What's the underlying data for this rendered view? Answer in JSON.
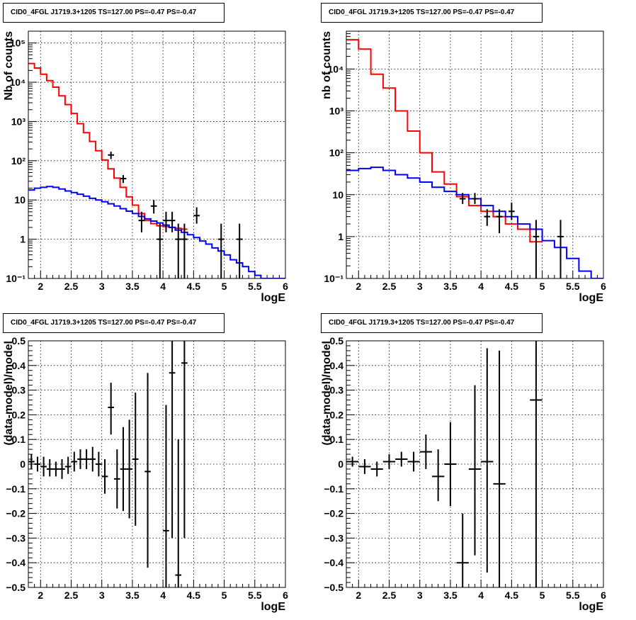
{
  "chart_data": [
    {
      "type": "line",
      "title": "CID0_4FGL J1719.3+1205 TS=127.00 PS=-0.47 PS=-0.47",
      "xlabel": "logE",
      "ylabel": "Nb of counts",
      "log_y": true,
      "grid": true,
      "xlim": [
        1.8,
        6
      ],
      "ylim": [
        0.1,
        200000
      ],
      "xticks": [
        2,
        2.5,
        3,
        3.5,
        4,
        4.5,
        5,
        5.5,
        6
      ],
      "xtick_labels": [
        "2",
        "2.5",
        "3",
        "3.5",
        "4",
        "4.5",
        "5",
        "5.5",
        "6"
      ],
      "yticks": [
        0.1,
        1,
        10,
        100,
        1000,
        10000,
        100000
      ],
      "ytick_labels": [
        "10⁻¹",
        "1",
        "10",
        "10²",
        "10³",
        "10⁴",
        "10⁵"
      ],
      "series": [
        {
          "kind": "step",
          "color": "#ff0000",
          "edges": [
            1.8,
            1.9,
            2.0,
            2.1,
            2.2,
            2.3,
            2.4,
            2.5,
            2.6,
            2.7,
            2.8,
            2.9,
            3.0,
            3.1,
            3.2,
            3.3,
            3.4,
            3.5,
            3.6,
            3.7,
            3.8,
            3.9,
            4.0,
            4.1,
            4.2,
            4.3,
            4.4
          ],
          "values": [
            30000,
            23000,
            16000,
            11000,
            7500,
            4500,
            2700,
            1600,
            880,
            520,
            310,
            180,
            105,
            62,
            36,
            21,
            12,
            7.4,
            4.5,
            3.0,
            2.5,
            2.2,
            2.1,
            2.0,
            1.9,
            1.8
          ]
        },
        {
          "kind": "step",
          "color": "#0000ff",
          "edges": [
            1.8,
            1.9,
            2.0,
            2.1,
            2.2,
            2.3,
            2.4,
            2.5,
            2.6,
            2.7,
            2.8,
            2.9,
            3.0,
            3.1,
            3.2,
            3.3,
            3.4,
            3.5,
            3.6,
            3.7,
            3.8,
            3.9,
            4.0,
            4.1,
            4.2,
            4.3,
            4.4,
            4.5,
            4.6,
            4.7,
            4.8,
            4.9,
            5.0,
            5.1,
            5.2,
            5.3,
            5.4,
            5.5,
            5.6,
            5.7,
            5.8,
            5.9,
            6.0
          ],
          "values": [
            18,
            20,
            21,
            22,
            21,
            19,
            17,
            15.5,
            14,
            12.5,
            11,
            10,
            9,
            8,
            7,
            6,
            5.2,
            4.5,
            3.8,
            3.3,
            2.9,
            2.6,
            2.3,
            2.0,
            1.7,
            1.5,
            1.3,
            1.1,
            0.9,
            0.75,
            0.6,
            0.5,
            0.4,
            0.3,
            0.25,
            0.2,
            0.15,
            0.12,
            0.1,
            0.1,
            0.1,
            0.1
          ]
        },
        {
          "kind": "points",
          "color": "#000000",
          "points": [
            {
              "x": 3.15,
              "y": 140,
              "ylo": 110,
              "yhi": 170
            },
            {
              "x": 3.35,
              "y": 35,
              "ylo": 27,
              "yhi": 43
            },
            {
              "x": 3.65,
              "y": 3.0,
              "ylo": 1.5,
              "yhi": 5.0
            },
            {
              "x": 3.85,
              "y": 7.0,
              "ylo": 4.5,
              "yhi": 10
            },
            {
              "x": 3.95,
              "y": 1.0,
              "ylo": 0.1,
              "yhi": 2.5
            },
            {
              "x": 4.05,
              "y": 3.0,
              "ylo": 1.5,
              "yhi": 5.0
            },
            {
              "x": 4.15,
              "y": 3.0,
              "ylo": 1.5,
              "yhi": 5.0
            },
            {
              "x": 4.25,
              "y": 1.0,
              "ylo": 0.1,
              "yhi": 2.5
            },
            {
              "x": 4.35,
              "y": 1.0,
              "ylo": 0.1,
              "yhi": 2.5
            },
            {
              "x": 4.55,
              "y": 4.0,
              "ylo": 2.5,
              "yhi": 6.5
            },
            {
              "x": 4.95,
              "y": 1.0,
              "ylo": 0.1,
              "yhi": 2.5
            },
            {
              "x": 5.25,
              "y": 1.0,
              "ylo": 0.1,
              "yhi": 2.5
            }
          ]
        }
      ]
    },
    {
      "type": "line",
      "title": "CID0_4FGL J1719.3+1205 TS=127.00 PS=-0.47 PS=-0.47",
      "xlabel": "logE",
      "ylabel": "nb of counts",
      "log_y": true,
      "grid": true,
      "xlim": [
        1.8,
        6
      ],
      "ylim": [
        0.1,
        80000
      ],
      "xticks": [
        2,
        2.5,
        3,
        3.5,
        4,
        4.5,
        5,
        5.5,
        6
      ],
      "xtick_labels": [
        "2",
        "2.5",
        "3",
        "3.5",
        "4",
        "4.5",
        "5",
        "5.5",
        "6"
      ],
      "yticks": [
        0.1,
        1,
        10,
        100,
        1000,
        10000
      ],
      "ytick_labels": [
        "10⁻¹",
        "1",
        "10",
        "10²",
        "10³",
        "10⁴"
      ],
      "series": [
        {
          "kind": "step",
          "color": "#ff0000",
          "edges": [
            1.8,
            2.0,
            2.2,
            2.4,
            2.6,
            2.8,
            3.0,
            3.2,
            3.4,
            3.6,
            3.8,
            4.0,
            4.2,
            4.4,
            4.6,
            4.8,
            5.0
          ],
          "values": [
            50000,
            30000,
            7500,
            3500,
            1000,
            330,
            100,
            35,
            18,
            9,
            5.5,
            4.0,
            3.0,
            2.0,
            1.5,
            0.75
          ]
        },
        {
          "kind": "step",
          "color": "#0000ff",
          "edges": [
            1.8,
            2.0,
            2.2,
            2.4,
            2.6,
            2.8,
            3.0,
            3.2,
            3.4,
            3.6,
            3.8,
            4.0,
            4.2,
            4.4,
            4.6,
            4.8,
            5.0,
            5.2,
            5.4,
            5.6,
            5.8,
            6.0
          ],
          "values": [
            38,
            42,
            45,
            38,
            30,
            25,
            20,
            15,
            12,
            10,
            8,
            5.5,
            4.0,
            3.0,
            2.0,
            1.5,
            0.8,
            0.55,
            0.3,
            0.15,
            0.1
          ]
        },
        {
          "kind": "points",
          "color": "#000000",
          "points": [
            {
              "x": 3.7,
              "y": 8.0,
              "ylo": 6.0,
              "yhi": 11
            },
            {
              "x": 3.9,
              "y": 8.0,
              "ylo": 6.0,
              "yhi": 11
            },
            {
              "x": 4.1,
              "y": 3.0,
              "ylo": 1.8,
              "yhi": 4.5
            },
            {
              "x": 4.3,
              "y": 3.0,
              "ylo": 1.2,
              "yhi": 4.5
            },
            {
              "x": 4.5,
              "y": 4.0,
              "ylo": 2.5,
              "yhi": 6.5
            },
            {
              "x": 4.9,
              "y": 1.0,
              "ylo": 0.1,
              "yhi": 2.5
            },
            {
              "x": 5.3,
              "y": 1.0,
              "ylo": 0.1,
              "yhi": 2.5
            }
          ]
        }
      ]
    },
    {
      "type": "scatter",
      "title": "CID0_4FGL J1719.3+1205 TS=127.00 PS=-0.47 PS=-0.47",
      "xlabel": "logE",
      "ylabel": "(data-model)/model",
      "grid": true,
      "xlim": [
        1.8,
        6
      ],
      "ylim": [
        -0.5,
        0.5
      ],
      "xticks": [
        2,
        2.5,
        3,
        3.5,
        4,
        4.5,
        5,
        5.5,
        6
      ],
      "xtick_labels": [
        "2",
        "2.5",
        "3",
        "3.5",
        "4",
        "4.5",
        "5",
        "5.5",
        "6"
      ],
      "yticks": [
        -0.5,
        -0.4,
        -0.3,
        -0.2,
        -0.1,
        0,
        0.1,
        0.2,
        0.3,
        0.4,
        0.5
      ],
      "ytick_labels": [
        "−0.5",
        "−0.4",
        "−0.3",
        "−0.2",
        "−0.1",
        "0",
        "0.1",
        "0.2",
        "0.3",
        "0.4",
        "0.5"
      ],
      "series": [
        {
          "kind": "points",
          "color": "#000000",
          "xerr": 0.05,
          "points": [
            {
              "x": 1.85,
              "y": 0.01,
              "ylo": -0.02,
              "yhi": 0.04
            },
            {
              "x": 1.95,
              "y": 0.0,
              "ylo": -0.03,
              "yhi": 0.03
            },
            {
              "x": 2.05,
              "y": -0.01,
              "ylo": -0.05,
              "yhi": 0.03
            },
            {
              "x": 2.15,
              "y": -0.02,
              "ylo": -0.05,
              "yhi": 0.02
            },
            {
              "x": 2.25,
              "y": -0.02,
              "ylo": -0.05,
              "yhi": 0.01
            },
            {
              "x": 2.35,
              "y": -0.02,
              "ylo": -0.06,
              "yhi": 0.02
            },
            {
              "x": 2.45,
              "y": -0.01,
              "ylo": -0.04,
              "yhi": 0.03
            },
            {
              "x": 2.55,
              "y": 0.01,
              "ylo": -0.03,
              "yhi": 0.05
            },
            {
              "x": 2.65,
              "y": 0.02,
              "ylo": -0.02,
              "yhi": 0.06
            },
            {
              "x": 2.75,
              "y": 0.02,
              "ylo": -0.02,
              "yhi": 0.06
            },
            {
              "x": 2.85,
              "y": 0.02,
              "ylo": -0.03,
              "yhi": 0.07
            },
            {
              "x": 2.95,
              "y": 0.0,
              "ylo": -0.05,
              "yhi": 0.05
            },
            {
              "x": 3.05,
              "y": -0.05,
              "ylo": -0.12,
              "yhi": 0.02
            },
            {
              "x": 3.15,
              "y": 0.23,
              "ylo": 0.12,
              "yhi": 0.33
            },
            {
              "x": 3.25,
              "y": -0.06,
              "ylo": -0.18,
              "yhi": 0.06
            },
            {
              "x": 3.35,
              "y": -0.02,
              "ylo": -0.19,
              "yhi": 0.15
            },
            {
              "x": 3.45,
              "y": -0.02,
              "ylo": -0.22,
              "yhi": 0.18
            },
            {
              "x": 3.55,
              "y": 0.02,
              "ylo": -0.25,
              "yhi": 0.29
            },
            {
              "x": 3.75,
              "y": -0.03,
              "ylo": -0.42,
              "yhi": 0.37
            },
            {
              "x": 4.05,
              "y": -0.27,
              "ylo": -0.78,
              "yhi": 0.24
            },
            {
              "x": 4.15,
              "y": 0.37,
              "ylo": -0.3,
              "yhi": 1.04
            },
            {
              "x": 4.25,
              "y": -0.45,
              "ylo": -1.0,
              "yhi": 0.1
            },
            {
              "x": 4.35,
              "y": 0.41,
              "ylo": -0.3,
              "yhi": 1.12
            }
          ]
        }
      ]
    },
    {
      "type": "scatter",
      "title": "CID0_4FGL J1719.3+1205 TS=127.00 PS=-0.47 PS=-0.47",
      "xlabel": "logE",
      "ylabel": "(data-model)/model",
      "grid": true,
      "xlim": [
        1.8,
        6
      ],
      "ylim": [
        -0.5,
        0.5
      ],
      "xticks": [
        2,
        2.5,
        3,
        3.5,
        4,
        4.5,
        5,
        5.5,
        6
      ],
      "xtick_labels": [
        "2",
        "2.5",
        "3",
        "3.5",
        "4",
        "4.5",
        "5",
        "5.5",
        "6"
      ],
      "yticks": [
        -0.5,
        -0.4,
        -0.3,
        -0.2,
        -0.1,
        0,
        0.1,
        0.2,
        0.3,
        0.4,
        0.5
      ],
      "ytick_labels": [
        "−0.5",
        "−0.4",
        "−0.3",
        "−0.2",
        "−0.1",
        "0",
        "0.1",
        "0.2",
        "0.3",
        "0.4",
        "0.5"
      ],
      "series": [
        {
          "kind": "points",
          "color": "#000000",
          "xerr": 0.1,
          "points": [
            {
              "x": 1.9,
              "y": 0.01,
              "ylo": -0.01,
              "yhi": 0.03
            },
            {
              "x": 2.1,
              "y": -0.01,
              "ylo": -0.04,
              "yhi": 0.02
            },
            {
              "x": 2.3,
              "y": -0.02,
              "ylo": -0.05,
              "yhi": 0.01
            },
            {
              "x": 2.5,
              "y": 0.01,
              "ylo": -0.02,
              "yhi": 0.04
            },
            {
              "x": 2.7,
              "y": 0.02,
              "ylo": -0.01,
              "yhi": 0.05
            },
            {
              "x": 2.9,
              "y": 0.01,
              "ylo": -0.03,
              "yhi": 0.05
            },
            {
              "x": 3.1,
              "y": 0.05,
              "ylo": -0.02,
              "yhi": 0.12
            },
            {
              "x": 3.3,
              "y": -0.05,
              "ylo": -0.15,
              "yhi": 0.06
            },
            {
              "x": 3.5,
              "y": 0.0,
              "ylo": -0.17,
              "yhi": 0.17
            },
            {
              "x": 3.7,
              "y": -0.4,
              "ylo": -0.6,
              "yhi": -0.2
            },
            {
              "x": 3.9,
              "y": -0.02,
              "ylo": -0.37,
              "yhi": 0.32
            },
            {
              "x": 4.1,
              "y": 0.01,
              "ylo": -0.44,
              "yhi": 0.47
            },
            {
              "x": 4.3,
              "y": -0.08,
              "ylo": -0.6,
              "yhi": 0.46
            },
            {
              "x": 4.9,
              "y": 0.26,
              "ylo": -0.6,
              "yhi": 1.1
            }
          ]
        }
      ]
    }
  ]
}
